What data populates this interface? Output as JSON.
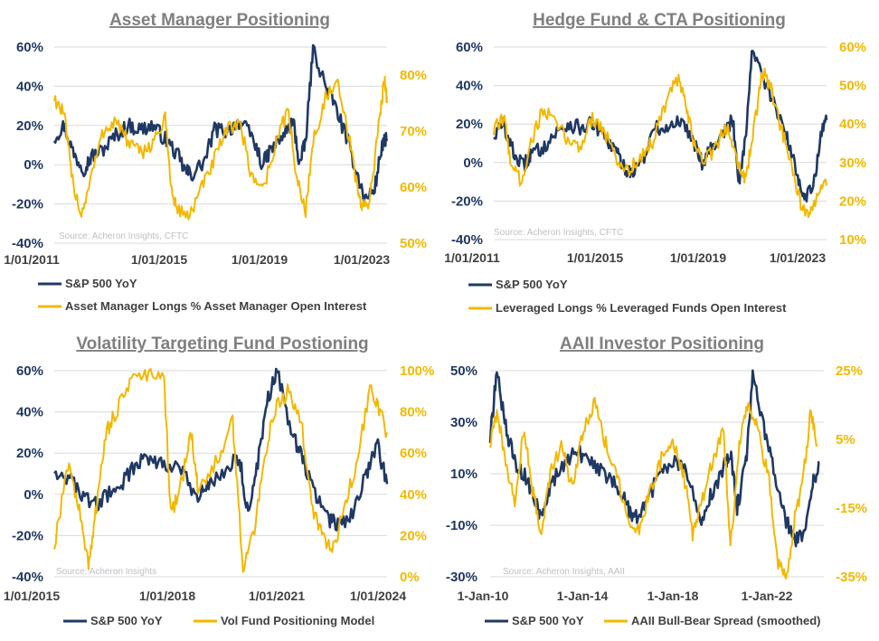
{
  "colors": {
    "sp500": "#1f3864",
    "positioning": "#f2b800",
    "grid": "#d9d9d9"
  },
  "chart_data": [
    {
      "type": "line",
      "title": "Asset Manager Positioning",
      "source": "Source: Acheron Insights, CFTC",
      "x_ticks": [
        "1/01/2011",
        "1/01/2015",
        "1/01/2019",
        "1/01/2023"
      ],
      "x_range": [
        2010.5,
        2024.0
      ],
      "y_left_ticks": [
        "60%",
        "40%",
        "20%",
        "0%",
        "-20%",
        "-40%"
      ],
      "y_left_range": [
        -40,
        60
      ],
      "y_right_ticks": [
        "80%",
        "70%",
        "60%",
        "50%"
      ],
      "y_right_range": [
        50,
        85
      ],
      "grid": true,
      "legend_position": "bottom",
      "series": [
        {
          "name": "S&P 500 YoY",
          "axis": "left",
          "color": "#1f3864",
          "x": [
            2010.5,
            2010.9,
            2011.3,
            2011.7,
            2012.0,
            2012.5,
            2013.0,
            2013.5,
            2014.0,
            2014.5,
            2015.0,
            2015.5,
            2015.8,
            2016.1,
            2016.6,
            2017.0,
            2017.5,
            2018.0,
            2018.5,
            2018.95,
            2019.3,
            2019.8,
            2020.2,
            2020.45,
            2020.7,
            2021.0,
            2021.5,
            2021.9,
            2022.4,
            2022.8,
            2023.1,
            2023.5,
            2023.8,
            2024.0
          ],
          "values": [
            14,
            20,
            5,
            -2,
            4,
            8,
            15,
            20,
            18,
            20,
            13,
            5,
            -3,
            -5,
            2,
            18,
            17,
            22,
            15,
            0,
            8,
            15,
            22,
            0,
            12,
            60,
            40,
            30,
            12,
            -5,
            -18,
            -12,
            10,
            13
          ]
        },
        {
          "name": "Asset Manager Longs % Asset Manager Open Interest",
          "axis": "right",
          "color": "#f2b800",
          "x": [
            2010.5,
            2010.9,
            2011.2,
            2011.6,
            2012.0,
            2012.5,
            2013.0,
            2013.5,
            2014.0,
            2014.5,
            2015.0,
            2015.3,
            2015.5,
            2016.0,
            2016.5,
            2017.0,
            2017.5,
            2018.0,
            2018.5,
            2019.0,
            2019.5,
            2020.0,
            2020.3,
            2020.7,
            2021.0,
            2021.5,
            2022.0,
            2022.4,
            2022.8,
            2023.0,
            2023.3,
            2023.7,
            2023.9,
            2024.0
          ],
          "values": [
            76,
            73,
            62,
            55,
            62,
            70,
            72,
            68,
            66,
            68,
            72,
            58,
            56,
            55,
            60,
            65,
            70,
            72,
            62,
            60,
            68,
            74,
            62,
            56,
            68,
            76,
            78,
            70,
            60,
            56,
            58,
            72,
            80,
            75
          ]
        }
      ]
    },
    {
      "type": "line",
      "title": "Hedge Fund & CTA Positioning",
      "source": "Source: Acheron Insights, CFTC",
      "x_ticks": [
        "1/01/2011",
        "1/01/2015",
        "1/01/2019",
        "1/01/2023"
      ],
      "x_range": [
        2010.5,
        2024.0
      ],
      "y_left_ticks": [
        "60%",
        "40%",
        "20%",
        "0%",
        "-20%",
        "-40%"
      ],
      "y_left_range": [
        -40,
        60
      ],
      "y_right_ticks": [
        "60%",
        "50%",
        "40%",
        "30%",
        "20%",
        "10%"
      ],
      "y_right_range": [
        10,
        60
      ],
      "grid": true,
      "legend_position": "bottom",
      "series": [
        {
          "name": "S&P 500 YoY",
          "axis": "left",
          "color": "#1f3864",
          "x": [
            2010.5,
            2010.9,
            2011.3,
            2011.7,
            2012.0,
            2012.5,
            2013.0,
            2013.5,
            2014.0,
            2014.5,
            2015.0,
            2015.5,
            2015.8,
            2016.1,
            2016.6,
            2017.0,
            2017.5,
            2018.0,
            2018.5,
            2018.95,
            2019.3,
            2019.8,
            2020.2,
            2020.45,
            2020.7,
            2021.0,
            2021.5,
            2021.9,
            2022.4,
            2022.8,
            2023.1,
            2023.5,
            2023.8,
            2024.0
          ],
          "values": [
            14,
            20,
            5,
            -2,
            4,
            8,
            15,
            20,
            18,
            20,
            13,
            5,
            -3,
            -5,
            2,
            18,
            17,
            22,
            15,
            0,
            8,
            15,
            22,
            -10,
            12,
            60,
            40,
            30,
            12,
            -5,
            -18,
            -10,
            15,
            22
          ]
        },
        {
          "name": "Leveraged Longs % Leveraged Funds Open Interest",
          "axis": "right",
          "color": "#f2b800",
          "x": [
            2010.5,
            2010.9,
            2011.2,
            2011.6,
            2012.0,
            2012.5,
            2013.0,
            2013.5,
            2014.0,
            2014.5,
            2015.0,
            2015.5,
            2016.0,
            2016.5,
            2017.0,
            2017.5,
            2018.0,
            2018.3,
            2018.6,
            2019.0,
            2019.5,
            2020.0,
            2020.4,
            2020.7,
            2021.0,
            2021.4,
            2021.8,
            2022.2,
            2022.6,
            2023.0,
            2023.3,
            2023.6,
            2024.0
          ],
          "values": [
            38,
            42,
            30,
            25,
            35,
            44,
            40,
            36,
            34,
            42,
            38,
            30,
            28,
            32,
            36,
            46,
            52,
            44,
            36,
            30,
            34,
            40,
            30,
            26,
            36,
            54,
            48,
            38,
            28,
            18,
            15,
            22,
            24
          ]
        }
      ]
    },
    {
      "type": "line",
      "title": "Volatility Targeting Fund Postioning",
      "source": "Source: Acheron Insights",
      "x_ticks": [
        "1/01/2015",
        "1/01/2018",
        "1/01/2021",
        "1/01/2024"
      ],
      "x_range": [
        2014.8,
        2024.5
      ],
      "y_left_ticks": [
        "60%",
        "40%",
        "20%",
        "0%",
        "-20%",
        "-40%"
      ],
      "y_left_range": [
        -40,
        60
      ],
      "y_right_ticks": [
        "100%",
        "80%",
        "60%",
        "40%",
        "20%",
        "0%"
      ],
      "y_right_range": [
        0,
        100
      ],
      "grid": true,
      "legend_position": "bottom",
      "series": [
        {
          "name": "S&P 500 YoY",
          "axis": "left",
          "color": "#1f3864",
          "x": [
            2014.8,
            2015.2,
            2015.6,
            2016.0,
            2016.4,
            2016.8,
            2017.2,
            2017.6,
            2018.0,
            2018.5,
            2018.95,
            2019.3,
            2019.8,
            2020.2,
            2020.45,
            2020.7,
            2021.0,
            2021.3,
            2021.7,
            2022.0,
            2022.4,
            2022.8,
            2023.1,
            2023.5,
            2023.9,
            2024.2,
            2024.5
          ],
          "values": [
            12,
            8,
            0,
            -5,
            0,
            6,
            15,
            18,
            15,
            12,
            -3,
            5,
            12,
            18,
            -10,
            12,
            45,
            60,
            30,
            20,
            0,
            -12,
            -15,
            -10,
            10,
            25,
            5
          ]
        },
        {
          "name": "Vol Fund Positioning Model",
          "axis": "right",
          "color": "#f2b800",
          "x": [
            2014.8,
            2015.2,
            2015.5,
            2015.8,
            2016.0,
            2016.3,
            2016.6,
            2017.0,
            2017.5,
            2018.0,
            2018.2,
            2018.5,
            2018.8,
            2019.0,
            2019.5,
            2020.0,
            2020.3,
            2020.6,
            2020.9,
            2021.2,
            2021.6,
            2022.0,
            2022.3,
            2022.6,
            2022.9,
            2023.2,
            2023.6,
            2024.0,
            2024.2,
            2024.5
          ],
          "values": [
            15,
            55,
            35,
            5,
            30,
            70,
            80,
            95,
            98,
            95,
            30,
            45,
            70,
            40,
            55,
            75,
            5,
            20,
            55,
            80,
            90,
            75,
            35,
            20,
            12,
            30,
            55,
            90,
            85,
            70
          ]
        }
      ]
    },
    {
      "type": "line",
      "title": "AAII Investor Positioning",
      "source": "Source: Acheron Insights, AAII",
      "x_ticks": [
        "1-Jan-10",
        "1-Jan-14",
        "1-Jan-18",
        "1-Jan-22"
      ],
      "x_range": [
        2009.5,
        2024.5
      ],
      "y_left_ticks": [
        "50%",
        "30%",
        "10%",
        "-10%",
        "-30%"
      ],
      "y_left_range": [
        -30,
        60
      ],
      "y_right_ticks": [
        "25%",
        "5%",
        "-15%",
        "-35%"
      ],
      "y_right_range": [
        -35,
        35
      ],
      "grid": true,
      "legend_position": "bottom",
      "series": [
        {
          "name": "S&P 500 YoY",
          "axis": "left",
          "color": "#1f3864",
          "x": [
            2009.5,
            2009.8,
            2010.2,
            2010.6,
            2011.0,
            2011.5,
            2011.8,
            2012.2,
            2012.8,
            2013.4,
            2014.0,
            2014.6,
            2015.2,
            2015.7,
            2016.1,
            2016.6,
            2017.2,
            2017.8,
            2018.3,
            2018.95,
            2019.4,
            2020.0,
            2020.3,
            2020.6,
            2021.0,
            2021.3,
            2021.8,
            2022.3,
            2022.8,
            2023.2,
            2023.6,
            2024.0,
            2024.3
          ],
          "values": [
            30,
            60,
            35,
            20,
            15,
            5,
            -5,
            10,
            18,
            25,
            20,
            15,
            10,
            0,
            -5,
            5,
            15,
            22,
            15,
            -5,
            5,
            18,
            25,
            0,
            20,
            58,
            35,
            15,
            -5,
            -15,
            -10,
            10,
            20
          ]
        },
        {
          "name": "AAII Bull-Bear Spread (smoothed)",
          "axis": "right",
          "color": "#f2b800",
          "x": [
            2009.5,
            2009.8,
            2010.2,
            2010.6,
            2011.0,
            2011.4,
            2011.8,
            2012.2,
            2012.7,
            2013.2,
            2013.7,
            2014.2,
            2014.7,
            2015.2,
            2015.7,
            2016.2,
            2016.7,
            2017.2,
            2017.7,
            2018.2,
            2018.6,
            2019.0,
            2019.5,
            2020.0,
            2020.3,
            2020.7,
            2021.1,
            2021.5,
            2022.0,
            2022.4,
            2022.8,
            2023.2,
            2023.6,
            2023.9,
            2024.2
          ],
          "values": [
            10,
            20,
            5,
            -10,
            15,
            -5,
            -20,
            0,
            10,
            -5,
            15,
            25,
            10,
            0,
            -15,
            -20,
            -5,
            5,
            10,
            0,
            -20,
            -10,
            5,
            15,
            -25,
            10,
            25,
            15,
            0,
            -30,
            -35,
            -15,
            0,
            20,
            10
          ]
        }
      ]
    }
  ]
}
